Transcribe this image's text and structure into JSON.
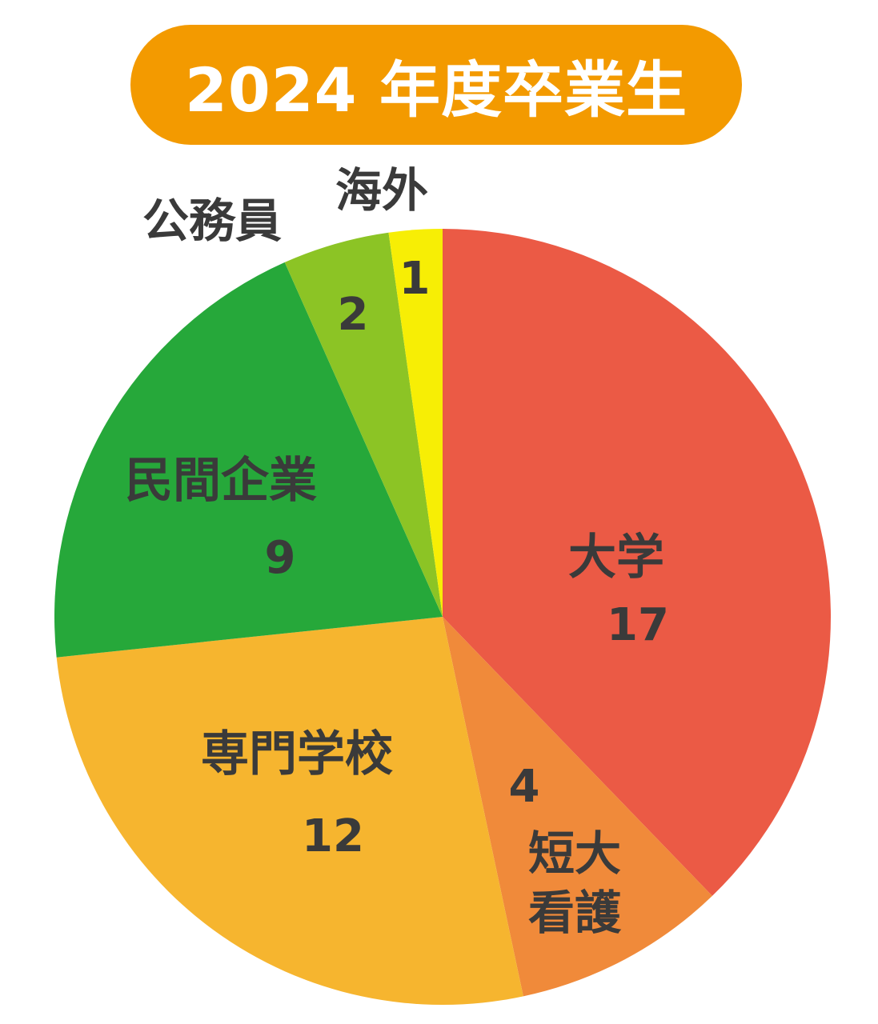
{
  "title": "2024 年度卒業生",
  "title_bg": "#F39A00",
  "text_color": "#3A3A3A",
  "chart_data": {
    "type": "pie",
    "title": "2024 年度卒業生",
    "start_angle_deg": 0,
    "direction": "clockwise",
    "slices": [
      {
        "label": "大学",
        "value": 17,
        "color": "#EB5A45"
      },
      {
        "label": "短大看護",
        "value": 4,
        "color": "#F08A3A"
      },
      {
        "label": "専門学校",
        "value": 12,
        "color": "#F6B52F"
      },
      {
        "label": "民間企業",
        "value": 9,
        "color": "#26A83A"
      },
      {
        "label": "公務員",
        "value": 2,
        "color": "#8CC425"
      },
      {
        "label": "海外",
        "value": 1,
        "color": "#F7EE05"
      }
    ]
  }
}
